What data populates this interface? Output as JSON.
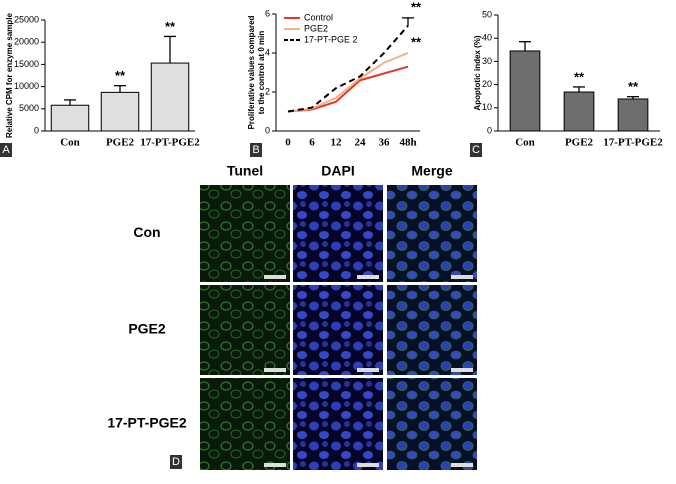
{
  "chart_data": [
    {
      "type": "bar",
      "panel_label": "A",
      "ylabel": [
        "Relative CPM for enzyme sample"
      ],
      "categories": [
        "Con",
        "PGE2",
        "17-PT-PGE2"
      ],
      "values": [
        5800,
        8700,
        15300
      ],
      "errors": [
        1200,
        1500,
        6000
      ],
      "color": "#e0e0e0",
      "ylim": [
        0,
        25000
      ],
      "yticks": [
        0,
        5000,
        10000,
        15000,
        20000,
        25000
      ],
      "annotations": [
        "**",
        "**"
      ]
    },
    {
      "type": "line",
      "panel_label": "B",
      "ylabel": [
        "Proliferative values compared",
        "to the control at 0 min"
      ],
      "categories": [
        "0",
        "6",
        "12",
        "24",
        "36",
        "48h"
      ],
      "series": [
        {
          "name": "Control",
          "color": "#e8332a",
          "values": [
            1.0,
            1.1,
            1.5,
            2.6,
            2.95,
            3.3
          ]
        },
        {
          "name": "PGE2",
          "color": "#f4b183",
          "values": [
            1.0,
            1.15,
            1.7,
            2.7,
            3.5,
            4.0
          ]
        },
        {
          "name": "17-PT-PGE 2",
          "color": "#000000",
          "dashed": true,
          "values": [
            1.0,
            1.2,
            2.2,
            2.8,
            4.0,
            5.4
          ],
          "errors": [
            null,
            null,
            null,
            null,
            null,
            0.4
          ]
        }
      ],
      "ylim": [
        0,
        6
      ],
      "yticks": [
        0,
        2,
        4,
        6
      ],
      "legend": "upper-left",
      "annotations": [
        "**",
        "**"
      ]
    },
    {
      "type": "bar",
      "panel_label": "C",
      "ylabel": [
        "Apoptotic index (%)"
      ],
      "categories": [
        "Con",
        "PGE2",
        "17-PT-PGE2"
      ],
      "values": [
        34.5,
        16.8,
        13.8
      ],
      "errors": [
        4,
        2.2,
        1
      ],
      "color": "#6e6e6e",
      "ylim": [
        0,
        50
      ],
      "yticks": [
        0,
        10,
        20,
        30,
        40,
        50
      ],
      "annotations": [
        "**",
        "**"
      ]
    }
  ],
  "panel_d": {
    "panel_label": "D",
    "columns": [
      "Tunel",
      "DAPI",
      "Merge"
    ],
    "rows": [
      "Con",
      "PGE2",
      "17-PT-PGE2"
    ]
  }
}
